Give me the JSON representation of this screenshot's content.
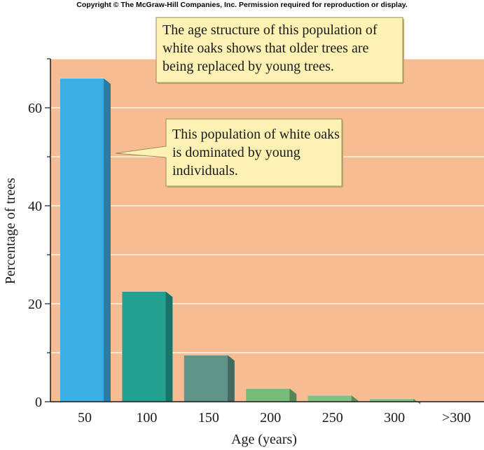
{
  "copyright": "Copyright © The McGraw-Hill Companies, Inc. Permission required for reproduction or display.",
  "callouts": [
    {
      "text": "The age structure of this population of white oaks shows that older trees are being replaced by young trees."
    },
    {
      "text": "This population of white oaks is dominated by young individuals."
    }
  ],
  "colors": {
    "plot_background": "#f8bc92",
    "callout_fill": "#fdf2b4",
    "bar_colors": [
      "#3aaee2",
      "#22a090",
      "#5e9388",
      "#76bb78",
      "#84c082",
      "#7ec280",
      "#7ec280"
    ]
  },
  "chart_data": {
    "type": "bar",
    "categories": [
      "50",
      "100",
      "150",
      "200",
      "250",
      "300",
      ">300"
    ],
    "values": [
      66,
      22.5,
      9.5,
      2.7,
      1.3,
      0.6,
      0
    ],
    "xlabel": "Age (years)",
    "ylabel": "Percentage of trees",
    "yticks": [
      "0",
      "20",
      "40",
      "60"
    ],
    "ytick_values": [
      0,
      20,
      40,
      60
    ],
    "ylim": [
      0,
      70
    ],
    "grid": true,
    "legend": "none"
  }
}
